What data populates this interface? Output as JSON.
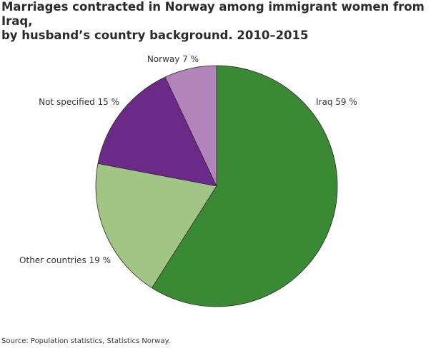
{
  "chart_data": {
    "type": "pie",
    "title_line1": "Marriages contracted in Norway among immigrant women from Iraq,",
    "title_line2": "by husband’s country background. 2010–2015",
    "slices": [
      {
        "label": "Iraq",
        "value": 59,
        "display": "Iraq 59 %",
        "color": "#3a8a35"
      },
      {
        "label": "Other countries",
        "value": 19,
        "display": "Other countries 19 %",
        "color": "#a0c584"
      },
      {
        "label": "Not specified",
        "value": 15,
        "display": "Not specified 15 %",
        "color": "#6b2a87"
      },
      {
        "label": "Norway",
        "value": 7,
        "display": "Norway 7 %",
        "color": "#b284bb"
      }
    ],
    "start_angle": "top",
    "direction": "clockwise",
    "source": "Source: Population statistics, Statistics Norway."
  }
}
